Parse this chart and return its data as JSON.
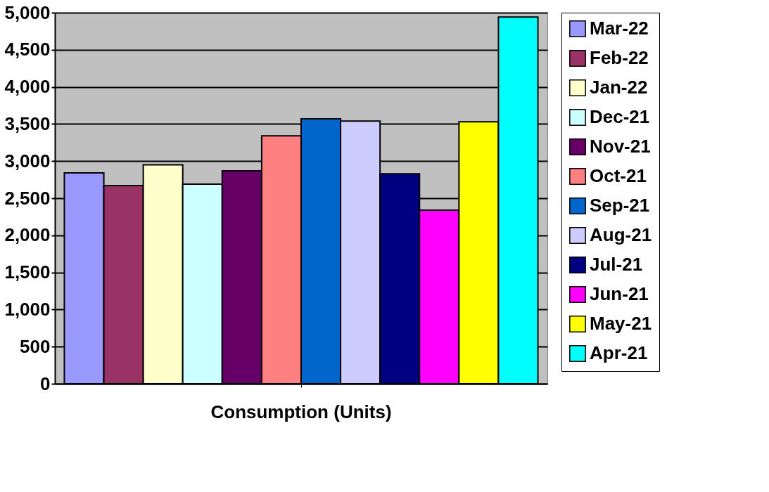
{
  "chart_data": {
    "type": "bar",
    "categories": [
      "Consumption (Units)"
    ],
    "series": [
      {
        "name": "Mar-22",
        "color": "#9999ff",
        "values": [
          2840
        ]
      },
      {
        "name": "Feb-22",
        "color": "#993366",
        "values": [
          2670
        ]
      },
      {
        "name": "Jan-22",
        "color": "#ffffcc",
        "values": [
          2950
        ]
      },
      {
        "name": "Dec-21",
        "color": "#ccffff",
        "values": [
          2690
        ]
      },
      {
        "name": "Nov-21",
        "color": "#660066",
        "values": [
          2870
        ]
      },
      {
        "name": "Oct-21",
        "color": "#ff8080",
        "values": [
          3340
        ]
      },
      {
        "name": "Sep-21",
        "color": "#0066cc",
        "values": [
          3570
        ]
      },
      {
        "name": "Aug-21",
        "color": "#ccccff",
        "values": [
          3540
        ]
      },
      {
        "name": "Jul-21",
        "color": "#000080",
        "values": [
          2830
        ]
      },
      {
        "name": "Jun-21",
        "color": "#ff00ff",
        "values": [
          2340
        ]
      },
      {
        "name": "May-21",
        "color": "#ffff00",
        "values": [
          3530
        ]
      },
      {
        "name": "Apr-21",
        "color": "#00ffff",
        "values": [
          4940
        ]
      }
    ],
    "ylim": [
      0,
      5000
    ],
    "yticks": [
      0,
      500,
      {
        "value": 1000,
        "label": "1,000"
      },
      {
        "value": 1500,
        "label": "1,500"
      },
      {
        "value": 2000,
        "label": "2,000"
      },
      {
        "value": 2500,
        "label": "2,500"
      },
      {
        "value": 3000,
        "label": "3,000"
      },
      {
        "value": 3500,
        "label": "3,500"
      },
      {
        "value": 4000,
        "label": "4,000"
      },
      {
        "value": 4500,
        "label": "4,500"
      },
      {
        "value": 5000,
        "label": "5,000"
      }
    ],
    "grid": "y",
    "legend": "right"
  }
}
